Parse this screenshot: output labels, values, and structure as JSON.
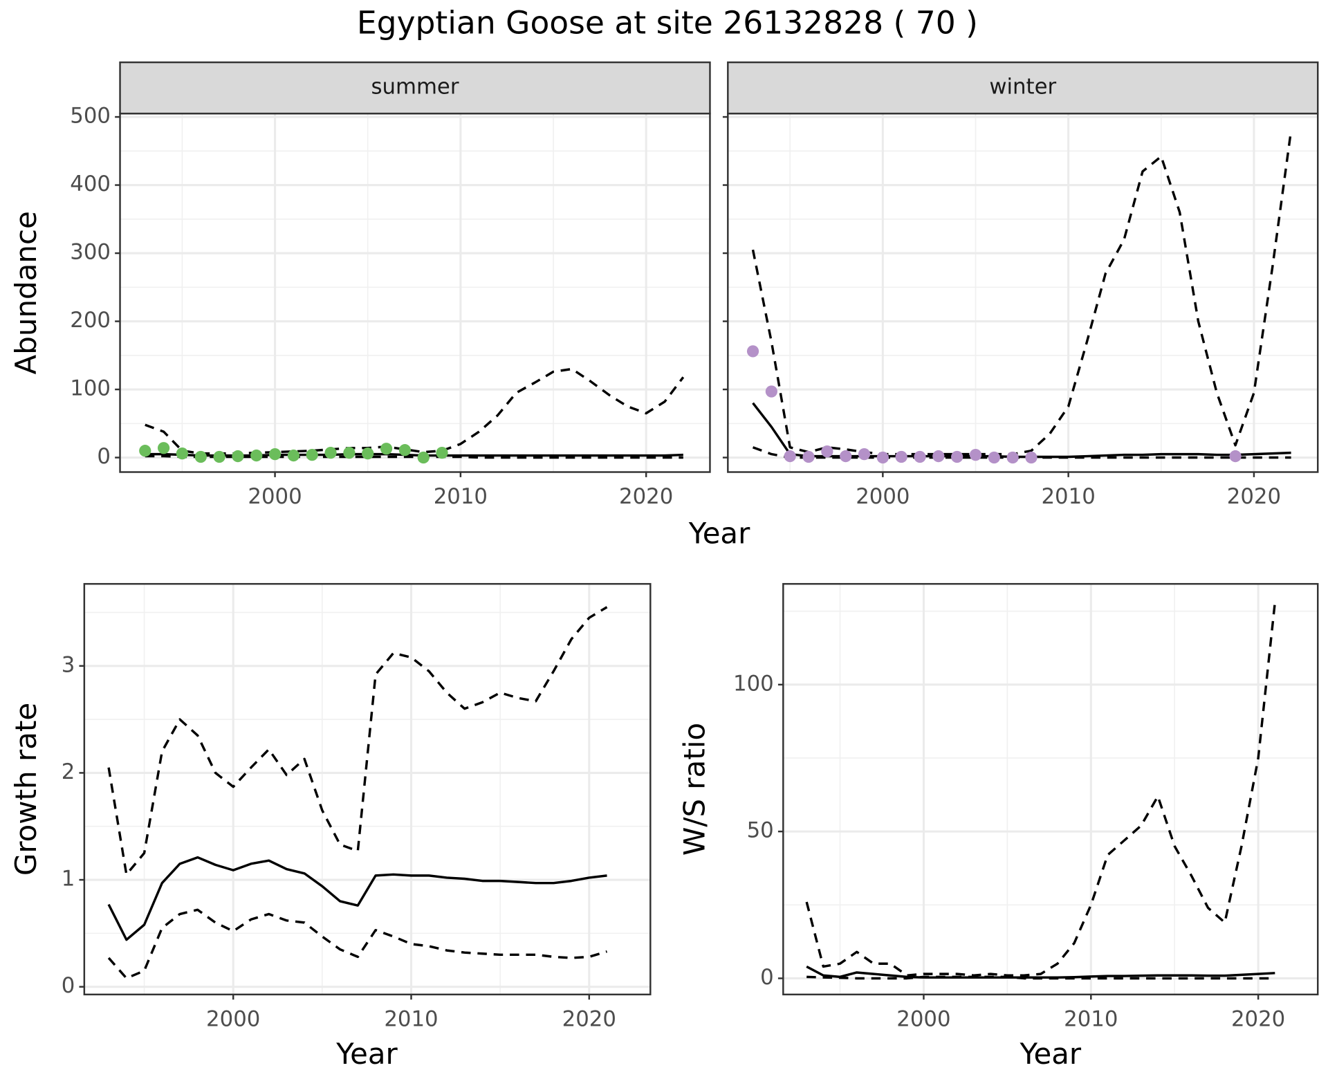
{
  "title": "Egyptian Goose at site 26132828 ( 70 )",
  "facet_xlabel": "Year",
  "facet_ylabel": "Abundance",
  "chart_data": [
    {
      "type": "line",
      "strip": "summer",
      "show_ytick_labels": true,
      "grid": true,
      "xlim": [
        1991.65,
        2023.44
      ],
      "xticks": [
        2000,
        2010,
        2020
      ],
      "ylim": [
        -21.3,
        505
      ],
      "yticks": [
        0,
        100,
        200,
        300,
        400,
        500
      ],
      "x": [
        1993,
        1994,
        1995,
        1996,
        1997,
        1998,
        1999,
        2000,
        2001,
        2002,
        2003,
        2004,
        2005,
        2006,
        2007,
        2008,
        2009,
        2010,
        2011,
        2012,
        2013,
        2014,
        2015,
        2016,
        2017,
        2018,
        2019,
        2020,
        2021,
        2022
      ],
      "series": [
        {
          "style": "dashed",
          "color": "#000000",
          "values": [
            2,
            2,
            1,
            1,
            1,
            1,
            1,
            1,
            1,
            1,
            1,
            1,
            1,
            1,
            1,
            1,
            1,
            1,
            0,
            0,
            0,
            0,
            0,
            0,
            0,
            0,
            0,
            0,
            0,
            0
          ]
        },
        {
          "style": "solid",
          "color": "#000000",
          "values": [
            5,
            5,
            4,
            3,
            3,
            3,
            3,
            4,
            4,
            4,
            4,
            5,
            5,
            5,
            4,
            3,
            3,
            3,
            3,
            3,
            3,
            3,
            3,
            3,
            3,
            3,
            3,
            3,
            3,
            4
          ]
        },
        {
          "style": "dashed",
          "color": "#000000",
          "values": [
            48,
            38,
            10,
            6,
            6,
            6,
            7,
            8,
            9,
            10,
            12,
            14,
            14,
            16,
            12,
            8,
            10,
            20,
            38,
            62,
            95,
            110,
            126,
            130,
            112,
            92,
            75,
            65,
            82,
            118
          ]
        },
        {
          "style": "points",
          "color": "#6bbd5b",
          "x": [
            1993,
            1994,
            1995,
            1996,
            1997,
            1998,
            1999,
            2000,
            2001,
            2002,
            2003,
            2004,
            2005,
            2006,
            2007,
            2008,
            2009
          ],
          "values": [
            10,
            14,
            6,
            1,
            1,
            2,
            3,
            5,
            3,
            4,
            7,
            7,
            6,
            13,
            11,
            0,
            7
          ]
        }
      ]
    },
    {
      "type": "line",
      "strip": "winter",
      "show_ytick_labels": false,
      "grid": true,
      "xlim": [
        1991.65,
        2023.44
      ],
      "xticks": [
        2000,
        2010,
        2020
      ],
      "ylim": [
        -21.3,
        505
      ],
      "yticks": [
        0,
        100,
        200,
        300,
        400,
        500
      ],
      "x": [
        1993,
        1994,
        1995,
        1996,
        1997,
        1998,
        1999,
        2000,
        2001,
        2002,
        2003,
        2004,
        2005,
        2006,
        2007,
        2008,
        2009,
        2010,
        2011,
        2012,
        2013,
        2014,
        2015,
        2016,
        2017,
        2018,
        2019,
        2020,
        2021,
        2022
      ],
      "series": [
        {
          "style": "dashed",
          "color": "#000000",
          "values": [
            15,
            5,
            0,
            0,
            0,
            0,
            0,
            0,
            0,
            0,
            0,
            0,
            0,
            0,
            0,
            0,
            0,
            0,
            0,
            0,
            0,
            0,
            0,
            0,
            0,
            0,
            0,
            0,
            0,
            0
          ]
        },
        {
          "style": "solid",
          "color": "#000000",
          "values": [
            80,
            45,
            5,
            2,
            2,
            2,
            2,
            2,
            2,
            2,
            2,
            2,
            2,
            2,
            1,
            1,
            1,
            1,
            2,
            3,
            4,
            4,
            5,
            5,
            5,
            4,
            4,
            5,
            6,
            7
          ]
        },
        {
          "style": "dashed",
          "color": "#000000",
          "values": [
            305,
            170,
            15,
            8,
            15,
            12,
            8,
            5,
            5,
            5,
            5,
            5,
            5,
            5,
            5,
            10,
            35,
            75,
            170,
            270,
            320,
            420,
            442,
            360,
            200,
            95,
            18,
            95,
            280,
            480
          ]
        },
        {
          "style": "points",
          "color": "#b491c8",
          "x": [
            1993,
            1994,
            1995,
            1996,
            1997,
            1998,
            1999,
            2000,
            2001,
            2002,
            2003,
            2004,
            2005,
            2006,
            2007,
            2008,
            2019
          ],
          "values": [
            156,
            97,
            2,
            1,
            9,
            2,
            5,
            0,
            1,
            1,
            2,
            1,
            4,
            0,
            0,
            0,
            2
          ]
        }
      ]
    },
    {
      "type": "line",
      "xlabel": "Year",
      "ylabel": "Growth rate",
      "show_ytick_labels": true,
      "grid": true,
      "xlim": [
        1991.63,
        2023.44
      ],
      "xticks": [
        2000,
        2010,
        2020
      ],
      "ylim": [
        -0.072,
        3.767
      ],
      "yticks": [
        0,
        1,
        2,
        3
      ],
      "x": [
        1993,
        1994,
        1995,
        1996,
        1997,
        1998,
        1999,
        2000,
        2001,
        2002,
        2003,
        2004,
        2005,
        2006,
        2007,
        2008,
        2009,
        2010,
        2011,
        2012,
        2013,
        2014,
        2015,
        2016,
        2017,
        2018,
        2019,
        2020,
        2021
      ],
      "series": [
        {
          "style": "dashed",
          "color": "#000000",
          "values": [
            0.27,
            0.08,
            0.15,
            0.55,
            0.68,
            0.72,
            0.6,
            0.52,
            0.63,
            0.68,
            0.62,
            0.6,
            0.47,
            0.35,
            0.28,
            0.53,
            0.47,
            0.4,
            0.38,
            0.34,
            0.32,
            0.31,
            0.3,
            0.3,
            0.3,
            0.28,
            0.27,
            0.28,
            0.33
          ]
        },
        {
          "style": "solid",
          "color": "#000000",
          "values": [
            0.77,
            0.44,
            0.58,
            0.97,
            1.15,
            1.21,
            1.14,
            1.09,
            1.15,
            1.18,
            1.1,
            1.06,
            0.94,
            0.8,
            0.76,
            1.04,
            1.05,
            1.04,
            1.04,
            1.02,
            1.01,
            0.99,
            0.99,
            0.98,
            0.97,
            0.97,
            0.99,
            1.02,
            1.04
          ]
        },
        {
          "style": "dashed",
          "color": "#000000",
          "values": [
            2.05,
            1.05,
            1.25,
            2.2,
            2.5,
            2.35,
            2.0,
            1.87,
            2.05,
            2.22,
            1.98,
            2.13,
            1.65,
            1.33,
            1.27,
            2.92,
            3.12,
            3.08,
            2.95,
            2.75,
            2.6,
            2.66,
            2.75,
            2.7,
            2.67,
            2.95,
            3.25,
            3.45,
            3.55
          ]
        }
      ]
    },
    {
      "type": "line",
      "xlabel": "Year",
      "ylabel": "W/S ratio",
      "show_ytick_labels": true,
      "grid": true,
      "xlim": [
        1991.6,
        2023.56
      ],
      "xticks": [
        2000,
        2010,
        2020
      ],
      "ylim": [
        -5.5,
        134.3
      ],
      "yticks": [
        0,
        50,
        100
      ],
      "x": [
        1993,
        1994,
        1995,
        1996,
        1997,
        1998,
        1999,
        2000,
        2001,
        2002,
        2003,
        2004,
        2005,
        2006,
        2007,
        2008,
        2009,
        2010,
        2011,
        2012,
        2013,
        2014,
        2015,
        2016,
        2017,
        2018,
        2019,
        2020,
        2021
      ],
      "series": [
        {
          "style": "dashed",
          "color": "#000000",
          "values": [
            0.5,
            0.3,
            0.2,
            0,
            0,
            0,
            0,
            0.5,
            0.5,
            0.5,
            0.5,
            0.5,
            0.5,
            0,
            0,
            0,
            0,
            0,
            0,
            0,
            0,
            0,
            0,
            0,
            0,
            0,
            0,
            0,
            0
          ]
        },
        {
          "style": "solid",
          "color": "#000000",
          "values": [
            4,
            1,
            0.5,
            2,
            1.5,
            1,
            0.5,
            0.3,
            0.3,
            0.3,
            0.3,
            0.3,
            0.3,
            0.3,
            0.3,
            0.3,
            0.4,
            0.6,
            0.8,
            0.8,
            0.9,
            1,
            1,
            1,
            0.9,
            0.9,
            1.2,
            1.5,
            1.8
          ]
        },
        {
          "style": "dashed",
          "color": "#000000",
          "values": [
            26,
            4,
            5,
            9,
            5,
            5,
            1,
            1.5,
            1.5,
            1.5,
            1,
            1.5,
            1,
            1,
            1.5,
            5,
            12,
            25,
            42,
            47,
            52,
            62,
            45,
            35,
            24,
            19,
            45,
            75,
            128
          ]
        }
      ]
    }
  ]
}
